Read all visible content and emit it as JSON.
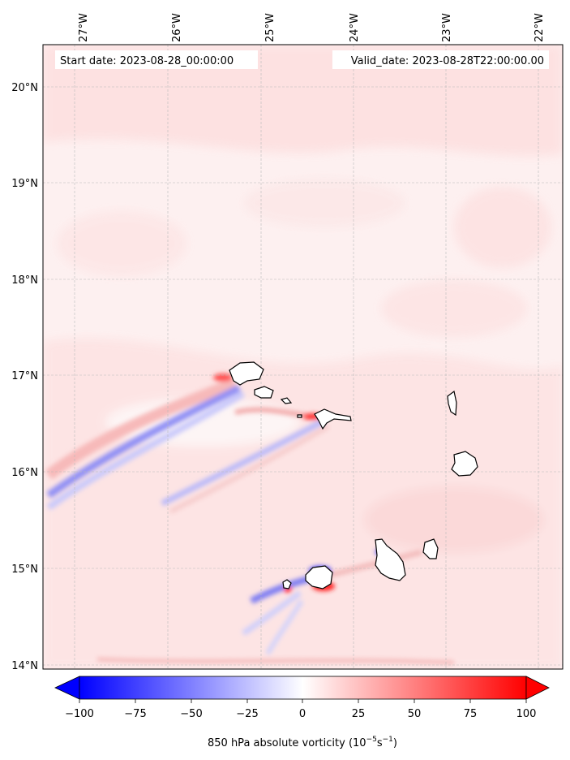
{
  "header": {
    "start_date": "Start date: 2023-08-28_00:00:00",
    "valid_date": "Valid_date: 2023-08-28T22:00:00.00"
  },
  "map": {
    "lon_ticks": [
      "27°W",
      "26°W",
      "25°W",
      "24°W",
      "23°W",
      "22°W"
    ],
    "lat_ticks": [
      "20°N",
      "19°N",
      "18°N",
      "17°N",
      "16°N",
      "15°N",
      "14°N"
    ],
    "background_color": "#fdecec",
    "positive_color": "#ff0000",
    "negative_color": "#0000ff"
  },
  "colorbar": {
    "label": "850 hPa absolute vorticity (10",
    "label_exp1": "−5",
    "label_mid": "s",
    "label_exp2": "−1",
    "label_end": ")",
    "ticks": [
      "−100",
      "−75",
      "−50",
      "−25",
      "0",
      "25",
      "50",
      "75",
      "100"
    ],
    "range": [
      -100,
      100
    ],
    "colormap": "bwr"
  }
}
